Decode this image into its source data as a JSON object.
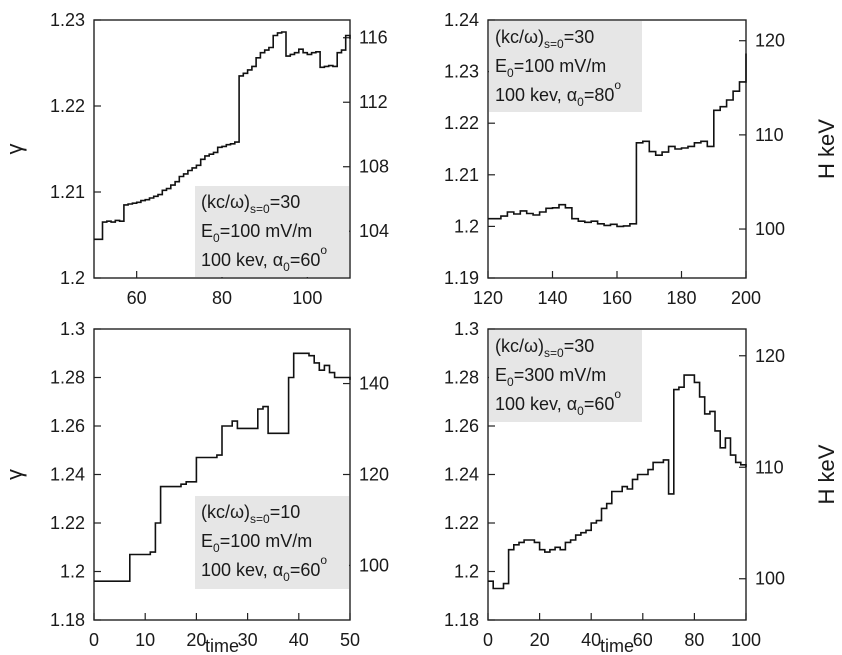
{
  "figure": {
    "ylabel_gamma": "γ",
    "ylabel_energy": "H keV",
    "xlabel": "time"
  },
  "chart_data": [
    {
      "type": "line",
      "title": "",
      "xlabel": "",
      "ylabel": "γ",
      "y2label": "",
      "xlim": [
        50,
        110
      ],
      "ylim": [
        1.2,
        1.23
      ],
      "y2lim": [
        101.1,
        117.1
      ],
      "xticks": [
        60,
        80,
        100
      ],
      "yticks": [
        1.2,
        1.21,
        1.22,
        1.23
      ],
      "y2ticks": [
        104,
        108,
        112,
        116
      ],
      "annotation": [
        "(kc/ω)",
        "s=0",
        "=30",
        "E",
        "0",
        "=100 mV/m",
        "100 kev, α",
        "0",
        "=60",
        "o"
      ],
      "series": [
        {
          "x": [
            50,
            51,
            52,
            53,
            54,
            55,
            56,
            57,
            58,
            59,
            60,
            61,
            62,
            63,
            64,
            65,
            66,
            67,
            68,
            69,
            70,
            71,
            72,
            73,
            74,
            75,
            76,
            77,
            78,
            79,
            80,
            81,
            82,
            83,
            84,
            85,
            86,
            87,
            88,
            89,
            90,
            91,
            92,
            93,
            94,
            95,
            96,
            97,
            98,
            99,
            100,
            101,
            102,
            103,
            104,
            105,
            106,
            107,
            108,
            109,
            110
          ],
          "y": [
            1.2045,
            1.2045,
            1.2065,
            1.2066,
            1.2065,
            1.2067,
            1.2066,
            1.2085,
            1.2086,
            1.2087,
            1.2088,
            1.209,
            1.2091,
            1.2093,
            1.2095,
            1.2097,
            1.2102,
            1.2104,
            1.2108,
            1.2112,
            1.2118,
            1.2121,
            1.2125,
            1.2128,
            1.2131,
            1.2138,
            1.2142,
            1.2144,
            1.2146,
            1.2152,
            1.2153,
            1.2155,
            1.2156,
            1.2158,
            1.2235,
            1.2238,
            1.2242,
            1.2246,
            1.2256,
            1.2262,
            1.2265,
            1.2268,
            1.2282,
            1.2285,
            1.2286,
            1.2258,
            1.226,
            1.2262,
            1.2266,
            1.2262,
            1.226,
            1.2262,
            1.2263,
            1.2245,
            1.2246,
            1.2247,
            1.2246,
            1.2262,
            1.2265,
            1.2282,
            1.2278
          ]
        }
      ]
    },
    {
      "type": "line",
      "title": "",
      "xlabel": "",
      "ylabel": "",
      "y2label": "H keV",
      "xlim": [
        120,
        200
      ],
      "ylim": [
        1.19,
        1.24
      ],
      "y2lim": [
        94.8,
        122.2
      ],
      "xticks": [
        120,
        140,
        160,
        180,
        200
      ],
      "yticks": [
        1.19,
        1.2,
        1.21,
        1.22,
        1.23,
        1.24
      ],
      "y2ticks": [
        100,
        110,
        120
      ],
      "annotation": [
        "(kc/ω)",
        "s=0",
        "=30",
        "E",
        "0",
        "=100 mV/m",
        "100 kev, α",
        "0",
        "=80",
        "o"
      ],
      "series": [
        {
          "x": [
            120,
            122,
            124,
            126,
            128,
            130,
            132,
            134,
            136,
            138,
            140,
            142,
            144,
            146,
            148,
            150,
            152,
            154,
            156,
            158,
            160,
            162,
            164,
            166,
            168,
            170,
            172,
            174,
            176,
            178,
            180,
            182,
            184,
            186,
            188,
            190,
            192,
            194,
            196,
            198,
            200
          ],
          "y": [
            1.2015,
            1.2015,
            1.202,
            1.2028,
            1.2024,
            1.203,
            1.2025,
            1.2022,
            1.2028,
            1.2035,
            1.2036,
            1.2042,
            1.2036,
            1.2015,
            1.201,
            1.2008,
            1.201,
            1.2005,
            1.2002,
            1.2004,
            1.2,
            1.2001,
            1.2005,
            1.2162,
            1.2165,
            1.2145,
            1.2138,
            1.2144,
            1.2155,
            1.215,
            1.2152,
            1.2155,
            1.2162,
            1.2165,
            1.2155,
            1.2225,
            1.2232,
            1.2245,
            1.2262,
            1.228,
            1.2335
          ]
        }
      ]
    },
    {
      "type": "line",
      "title": "",
      "xlabel": "time",
      "ylabel": "γ",
      "y2label": "",
      "xlim": [
        0,
        50
      ],
      "ylim": [
        1.18,
        1.3
      ],
      "y2lim": [
        88,
        152
      ],
      "xticks": [
        0,
        10,
        20,
        30,
        40,
        50
      ],
      "yticks": [
        1.18,
        1.2,
        1.22,
        1.24,
        1.26,
        1.28,
        1.3
      ],
      "y2ticks": [
        100,
        120,
        140
      ],
      "annotation": [
        "(kc/ω)",
        "s=0",
        "=10",
        "E",
        "0",
        "=100 mV/m",
        "100 kev, α",
        "0",
        "=60",
        "o"
      ],
      "series": [
        {
          "x": [
            0,
            1,
            2,
            3,
            4,
            5,
            6,
            7,
            8,
            9,
            10,
            11,
            12,
            13,
            14,
            15,
            16,
            17,
            18,
            19,
            20,
            21,
            22,
            23,
            24,
            25,
            26,
            27,
            28,
            29,
            30,
            31,
            32,
            33,
            34,
            35,
            36,
            37,
            38,
            39,
            40,
            41,
            42,
            43,
            44,
            45,
            46,
            47,
            48,
            49,
            50
          ],
          "y": [
            1.196,
            1.196,
            1.196,
            1.196,
            1.196,
            1.196,
            1.196,
            1.207,
            1.207,
            1.207,
            1.207,
            1.208,
            1.22,
            1.235,
            1.235,
            1.235,
            1.235,
            1.236,
            1.237,
            1.237,
            1.247,
            1.247,
            1.247,
            1.247,
            1.248,
            1.26,
            1.26,
            1.262,
            1.259,
            1.259,
            1.259,
            1.259,
            1.267,
            1.268,
            1.257,
            1.257,
            1.257,
            1.257,
            1.28,
            1.29,
            1.29,
            1.29,
            1.289,
            1.286,
            1.283,
            1.285,
            1.282,
            1.28,
            1.28,
            1.28,
            1.279
          ]
        }
      ]
    },
    {
      "type": "line",
      "title": "",
      "xlabel": "time",
      "ylabel": "",
      "y2label": "H keV",
      "xlim": [
        0,
        100
      ],
      "ylim": [
        1.18,
        1.3
      ],
      "y2lim": [
        96.3,
        122.4
      ],
      "xticks": [
        0,
        20,
        40,
        60,
        80,
        100
      ],
      "yticks": [
        1.18,
        1.2,
        1.22,
        1.24,
        1.26,
        1.28,
        1.3
      ],
      "y2ticks": [
        100,
        110,
        120
      ],
      "annotation": [
        "(kc/ω)",
        "s=0",
        "=30",
        "E",
        "0",
        "=300 mV/m",
        "100 kev, α",
        "0",
        "=60",
        "o"
      ],
      "series": [
        {
          "x": [
            0,
            2,
            4,
            6,
            8,
            10,
            12,
            14,
            16,
            18,
            20,
            22,
            24,
            26,
            28,
            30,
            32,
            34,
            36,
            38,
            40,
            42,
            44,
            46,
            48,
            50,
            52,
            54,
            56,
            58,
            60,
            62,
            64,
            66,
            68,
            70,
            72,
            74,
            76,
            78,
            80,
            82,
            84,
            86,
            88,
            90,
            92,
            94,
            96,
            98,
            100
          ],
          "y": [
            1.196,
            1.193,
            1.193,
            1.195,
            1.209,
            1.211,
            1.212,
            1.213,
            1.213,
            1.212,
            1.209,
            1.208,
            1.209,
            1.21,
            1.209,
            1.212,
            1.213,
            1.215,
            1.216,
            1.217,
            1.22,
            1.221,
            1.226,
            1.228,
            1.233,
            1.233,
            1.235,
            1.234,
            1.238,
            1.24,
            1.24,
            1.242,
            1.245,
            1.245,
            1.246,
            1.232,
            1.275,
            1.276,
            1.281,
            1.281,
            1.278,
            1.272,
            1.265,
            1.266,
            1.258,
            1.251,
            1.255,
            1.248,
            1.245,
            1.244,
            1.243
          ]
        }
      ]
    }
  ]
}
